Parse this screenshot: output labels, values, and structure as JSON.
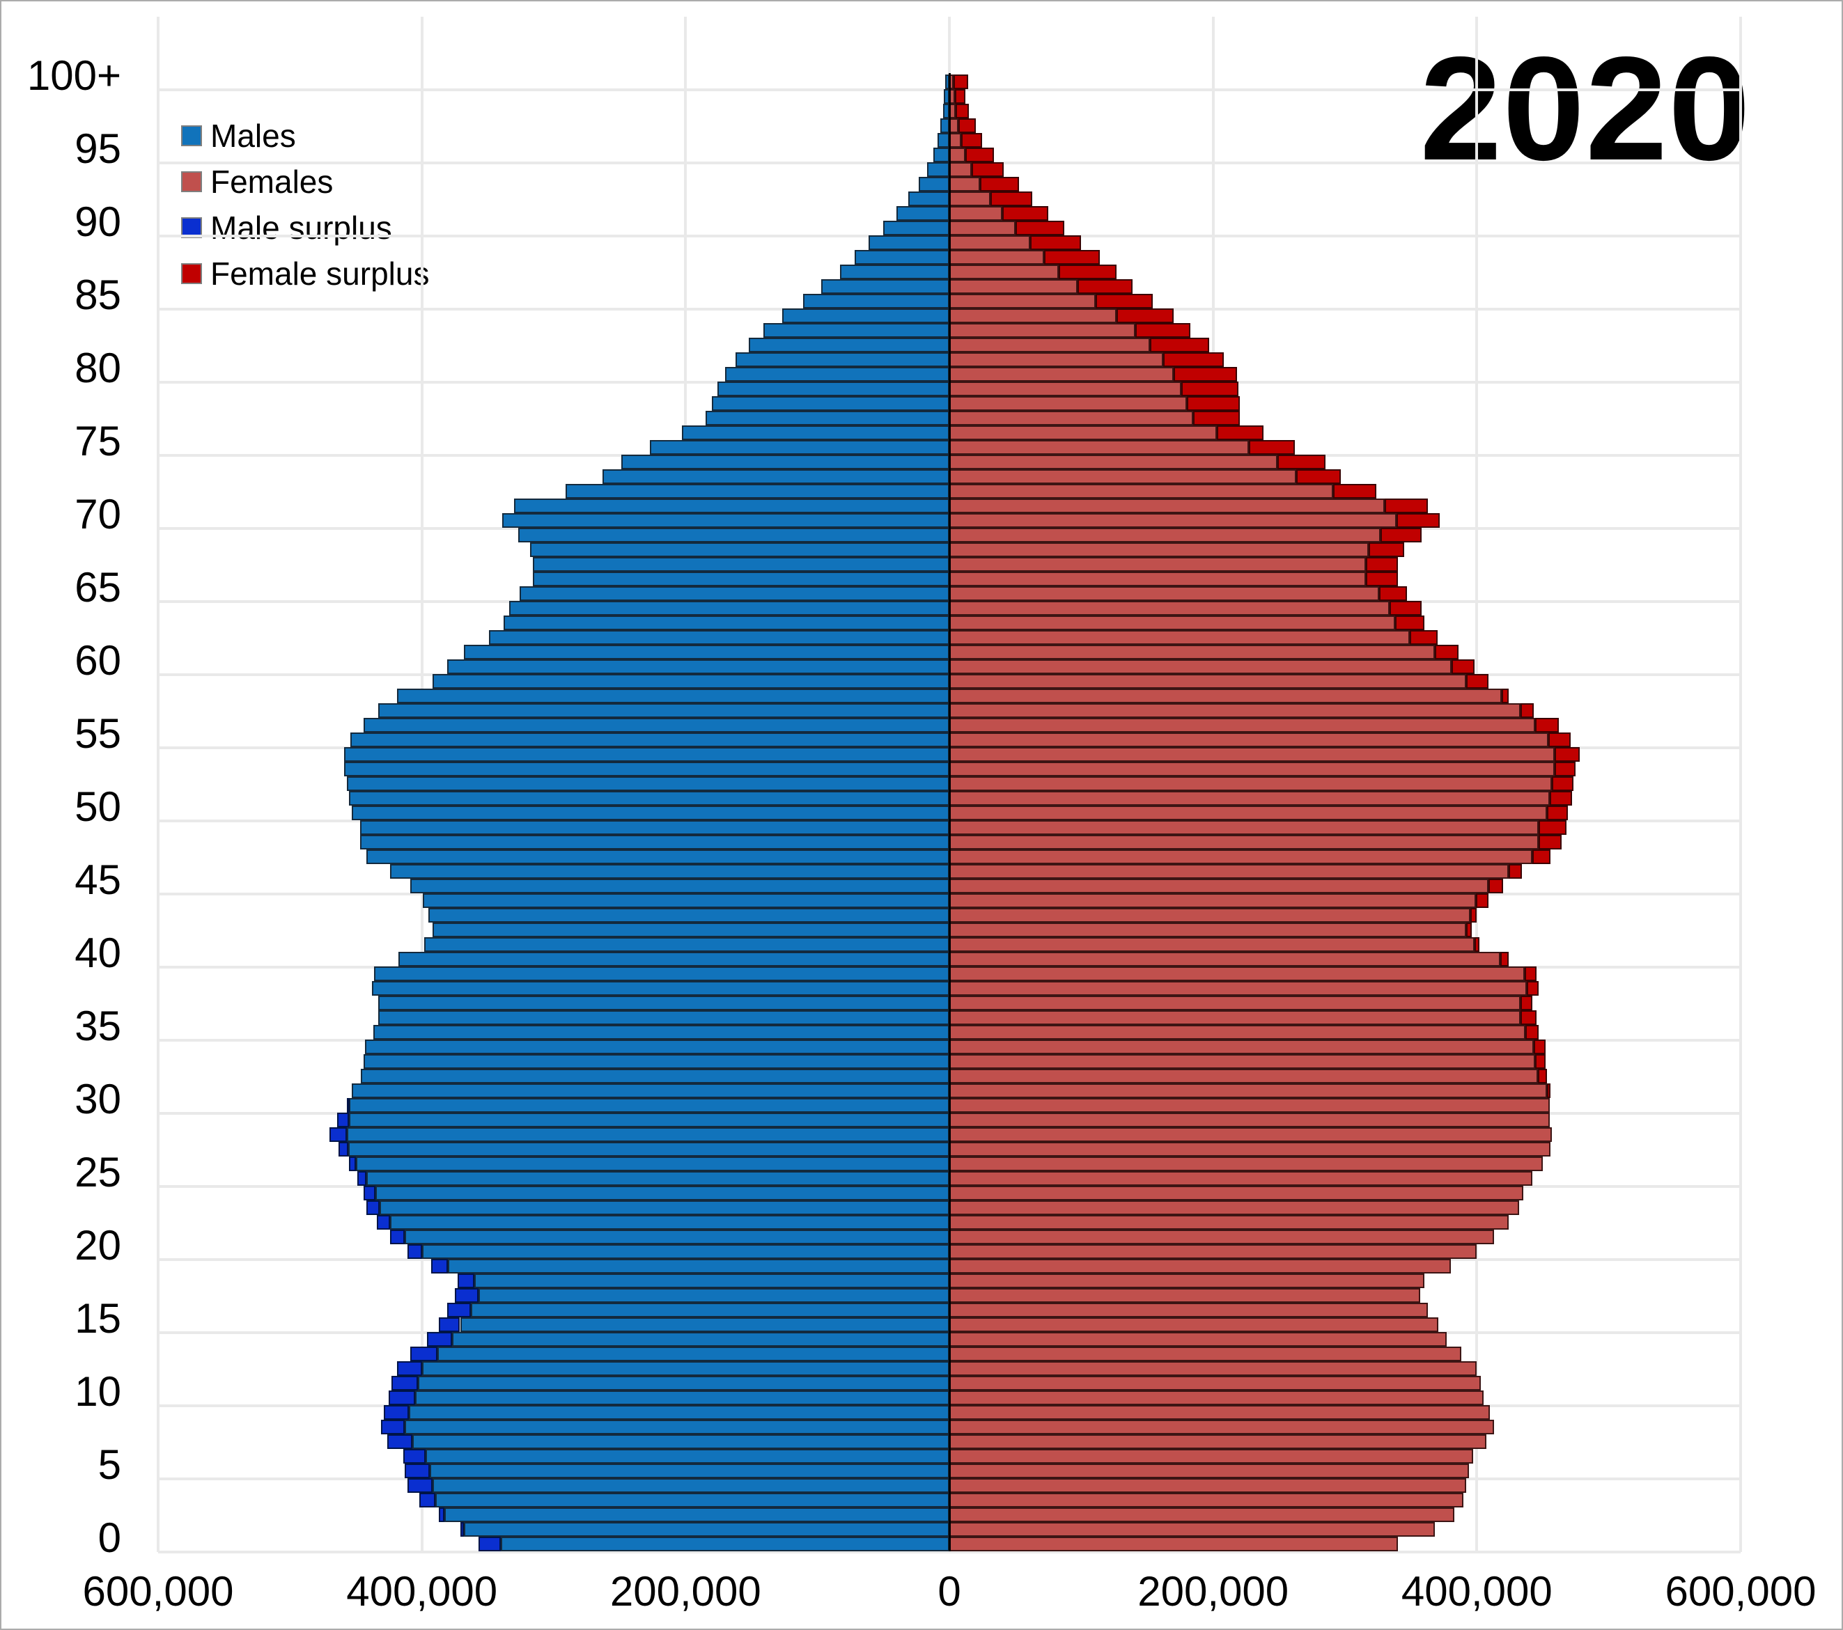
{
  "title": "2020",
  "legend": {
    "items": [
      {
        "key": "males",
        "label": "Males",
        "color": "#1173bb"
      },
      {
        "key": "females",
        "label": "Females",
        "color": "#c0504d"
      },
      {
        "key": "male_surplus",
        "label": "Male surplus",
        "color": "#0a2fd0"
      },
      {
        "key": "female_surplus",
        "label": "Female surplus",
        "color": "#c00000"
      }
    ]
  },
  "axes": {
    "x_tick_labels": [
      "600,000",
      "400,000",
      "200,000",
      "0",
      "200,000",
      "400,000",
      "600,000"
    ],
    "y_tick_labels": [
      "0",
      "5",
      "10",
      "15",
      "20",
      "25",
      "30",
      "35",
      "40",
      "45",
      "50",
      "55",
      "60",
      "65",
      "70",
      "75",
      "80",
      "85",
      "90",
      "95",
      "100+"
    ]
  },
  "colors": {
    "males": "#1173bb",
    "females": "#c0504d",
    "male_surplus": "#0a2fd0",
    "female_surplus": "#c00000",
    "gridline": "#e9e9e9",
    "axis_line": "#000000",
    "background": "#ffffff"
  },
  "chart_data": {
    "type": "bar",
    "subtype": "population-pyramid",
    "title": "2020",
    "orientation": "horizontal-mirrored",
    "age_structure": "single years of age, index 0 to 100, last bin is 100+",
    "x_axis": {
      "tick_values": [
        600000,
        400000,
        200000,
        0,
        200000,
        400000,
        600000
      ],
      "max_each_side": 600000
    },
    "grid": true,
    "legend_position": "top-left",
    "series": [
      {
        "name": "Males",
        "side": "left",
        "values": [
          357000,
          371000,
          387000,
          402000,
          411000,
          413000,
          414000,
          426000,
          431000,
          429000,
          425000,
          423000,
          419000,
          409000,
          396000,
          387000,
          381000,
          375000,
          373000,
          393000,
          411000,
          424000,
          434000,
          442000,
          444000,
          449000,
          455000,
          463000,
          470000,
          464000,
          457000,
          453000,
          446000,
          444000,
          443000,
          437000,
          433000,
          433000,
          438000,
          436000,
          418000,
          398000,
          392000,
          395000,
          399000,
          409000,
          424000,
          442000,
          447000,
          447000,
          453000,
          455000,
          457000,
          459000,
          459000,
          454000,
          444000,
          433000,
          419000,
          392000,
          381000,
          368000,
          349000,
          338000,
          334000,
          326000,
          316000,
          316000,
          318000,
          327000,
          339000,
          330000,
          291000,
          263000,
          249000,
          227000,
          203000,
          185000,
          180000,
          176000,
          170000,
          162000,
          152000,
          141000,
          127000,
          111000,
          97000,
          83000,
          72000,
          61000,
          50000,
          40000,
          31000,
          23000,
          17000,
          12000,
          9000,
          7000,
          5000,
          4000,
          3000
        ]
      },
      {
        "name": "Females",
        "side": "right",
        "values": [
          340000,
          368000,
          383000,
          390000,
          392000,
          394000,
          397000,
          407000,
          413000,
          410000,
          405000,
          403000,
          400000,
          388000,
          377000,
          371000,
          363000,
          357000,
          360000,
          380000,
          400000,
          413000,
          424000,
          432000,
          435000,
          442000,
          450000,
          456000,
          457000,
          455000,
          455000,
          456000,
          453000,
          452000,
          452000,
          447000,
          445000,
          442000,
          447000,
          445000,
          424000,
          402000,
          396000,
          400000,
          409000,
          420000,
          434000,
          456000,
          464000,
          468000,
          469000,
          472000,
          473000,
          475000,
          478000,
          471000,
          462000,
          443000,
          424000,
          409000,
          398000,
          386000,
          370000,
          360000,
          358000,
          347000,
          340000,
          340000,
          345000,
          358000,
          372000,
          363000,
          324000,
          297000,
          285000,
          262000,
          238000,
          220000,
          220000,
          219000,
          218000,
          208000,
          197000,
          183000,
          170000,
          154000,
          139000,
          127000,
          114000,
          100000,
          87000,
          75000,
          63000,
          53000,
          41000,
          34000,
          25000,
          20000,
          15000,
          12000,
          14000
        ]
      }
    ],
    "surplus_rule": "lighter color drawn to min(male,female); darker tip shows the excess of the larger sex"
  }
}
